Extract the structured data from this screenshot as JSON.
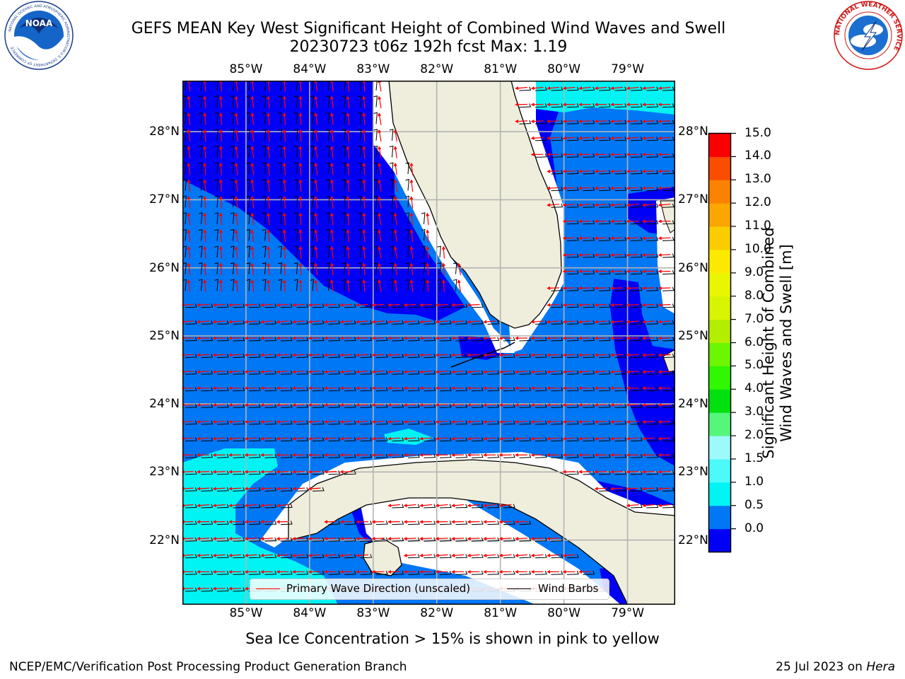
{
  "header": {
    "title_line1": "GEFS MEAN Key West Significant Height of Combined Wind Waves and Swell",
    "title_line2": "20230723 t06z 192h fcst   Max: 1.19"
  },
  "logos": {
    "left_text": "NOAA",
    "left_ring": "NATIONAL OCEANIC AND ATMOSPHERIC ADMINISTRATION",
    "left_ring_bottom": "U.S. DEPARTMENT OF COMMERCE",
    "right_ring": "NATIONAL WEATHER SERVICE"
  },
  "map": {
    "lon_labels": [
      "85°W",
      "84°W",
      "83°W",
      "82°W",
      "81°W",
      "80°W",
      "79°W"
    ],
    "lat_labels": [
      "28°N",
      "27°N",
      "26°N",
      "25°N",
      "24°N",
      "23°N",
      "22°N"
    ],
    "extent": {
      "lon_min": -86.0,
      "lon_max": -78.25,
      "lat_min": 21.05,
      "lat_max": 28.75
    },
    "colors": {
      "land": "#efeedc",
      "band_0": "#0000f7",
      "band_05": "#0077f5",
      "band_1": "#00f4f4",
      "wave_arrow": "#ff0000",
      "barb": "#000000",
      "grid": "#b3b3b3"
    }
  },
  "legend": {
    "wave_label": "Primary Wave Direction (unscaled)",
    "barb_label": "Wind Barbs"
  },
  "colorbar": {
    "title_line1": "Significant Height of Combined",
    "title_line2": "Wind Waves and Swell [m]",
    "tick_labels": [
      "15.0",
      "14.0",
      "13.0",
      "12.0",
      "11.0",
      "10.0",
      "9.0",
      "8.0",
      "7.0",
      "6.0",
      "5.0",
      "4.0",
      "3.0",
      "2.0",
      "1.5",
      "1.0",
      "0.5",
      "0.0"
    ],
    "colors_bottom_to_top": [
      "#0000f7",
      "#0077f5",
      "#00f4f4",
      "#4cfafa",
      "#9efafa",
      "#55f77b",
      "#00e10f",
      "#2ff800",
      "#6cf600",
      "#b3ee00",
      "#d7f500",
      "#eaf600",
      "#fbea00",
      "#fbcd00",
      "#fba700",
      "#fb8200",
      "#fb4d00",
      "#fb0000"
    ]
  },
  "footer": {
    "note": "Sea Ice Concentration > 15% is shown in pink to yellow",
    "credit": "NCEP/EMC/Verification Post Processing Product Generation Branch",
    "date": "25 Jul 2023 on ",
    "host": "Hera"
  }
}
